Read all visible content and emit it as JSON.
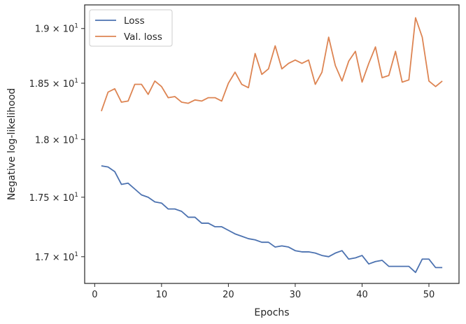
{
  "chart_data": {
    "type": "line",
    "xlabel": "Epochs",
    "ylabel": "Negative log-likelihood",
    "yscale": "log",
    "xlim": [
      -1.5,
      54.5
    ],
    "ylim": [
      16.78,
      19.22
    ],
    "grid": false,
    "legend_position": "top-left",
    "x_ticks": [
      {
        "value": 0,
        "label": "0"
      },
      {
        "value": 10,
        "label": "10"
      },
      {
        "value": 20,
        "label": "20"
      },
      {
        "value": 30,
        "label": "30"
      },
      {
        "value": 40,
        "label": "40"
      },
      {
        "value": 50,
        "label": "50"
      }
    ],
    "y_ticks": [
      {
        "value": 17.0,
        "base": "1.7 × 10",
        "exp": "1"
      },
      {
        "value": 17.5,
        "base": "1.75 × 10",
        "exp": "1"
      },
      {
        "value": 18.0,
        "base": "1.8 × 10",
        "exp": "1"
      },
      {
        "value": 18.5,
        "base": "1.85 × 10",
        "exp": "1"
      },
      {
        "value": 19.0,
        "base": "1.9 × 10",
        "exp": "1"
      }
    ],
    "series": [
      {
        "name": "Loss",
        "color": "#4c72b0",
        "x": [
          1,
          2,
          3,
          4,
          5,
          6,
          7,
          8,
          9,
          10,
          11,
          12,
          13,
          14,
          15,
          16,
          17,
          18,
          19,
          20,
          21,
          22,
          23,
          24,
          25,
          26,
          27,
          28,
          29,
          30,
          31,
          32,
          33,
          34,
          35,
          36,
          37,
          38,
          39,
          40,
          41,
          42,
          43,
          44,
          45,
          46,
          47,
          48,
          49,
          50,
          51,
          52
        ],
        "y": [
          17.77,
          17.76,
          17.72,
          17.61,
          17.62,
          17.57,
          17.52,
          17.5,
          17.46,
          17.45,
          17.4,
          17.4,
          17.38,
          17.33,
          17.33,
          17.28,
          17.28,
          17.25,
          17.25,
          17.22,
          17.19,
          17.17,
          17.15,
          17.14,
          17.12,
          17.12,
          17.08,
          17.09,
          17.08,
          17.05,
          17.04,
          17.04,
          17.03,
          17.01,
          17.0,
          17.03,
          17.05,
          16.98,
          16.99,
          17.01,
          16.94,
          16.96,
          16.97,
          16.92,
          16.92,
          16.92,
          16.92,
          16.87,
          16.98,
          16.98,
          16.91,
          16.91
        ]
      },
      {
        "name": "Val. loss",
        "color": "#dd8452",
        "x": [
          1,
          2,
          3,
          4,
          5,
          6,
          7,
          8,
          9,
          10,
          11,
          12,
          13,
          14,
          15,
          16,
          17,
          18,
          19,
          20,
          21,
          22,
          23,
          24,
          25,
          26,
          27,
          28,
          29,
          30,
          31,
          32,
          33,
          34,
          35,
          36,
          37,
          38,
          39,
          40,
          41,
          42,
          43,
          44,
          45,
          46,
          47,
          48,
          49,
          50,
          51,
          52
        ],
        "y": [
          18.25,
          18.42,
          18.45,
          18.33,
          18.34,
          18.49,
          18.49,
          18.4,
          18.52,
          18.47,
          18.37,
          18.38,
          18.33,
          18.32,
          18.35,
          18.34,
          18.37,
          18.37,
          18.34,
          18.5,
          18.6,
          18.49,
          18.46,
          18.77,
          18.58,
          18.63,
          18.84,
          18.63,
          18.68,
          18.71,
          18.68,
          18.71,
          18.49,
          18.6,
          18.92,
          18.66,
          18.52,
          18.7,
          18.79,
          18.51,
          18.68,
          18.83,
          18.55,
          18.57,
          18.79,
          18.51,
          18.53,
          19.1,
          18.92,
          18.52,
          18.47,
          18.52
        ]
      }
    ]
  }
}
